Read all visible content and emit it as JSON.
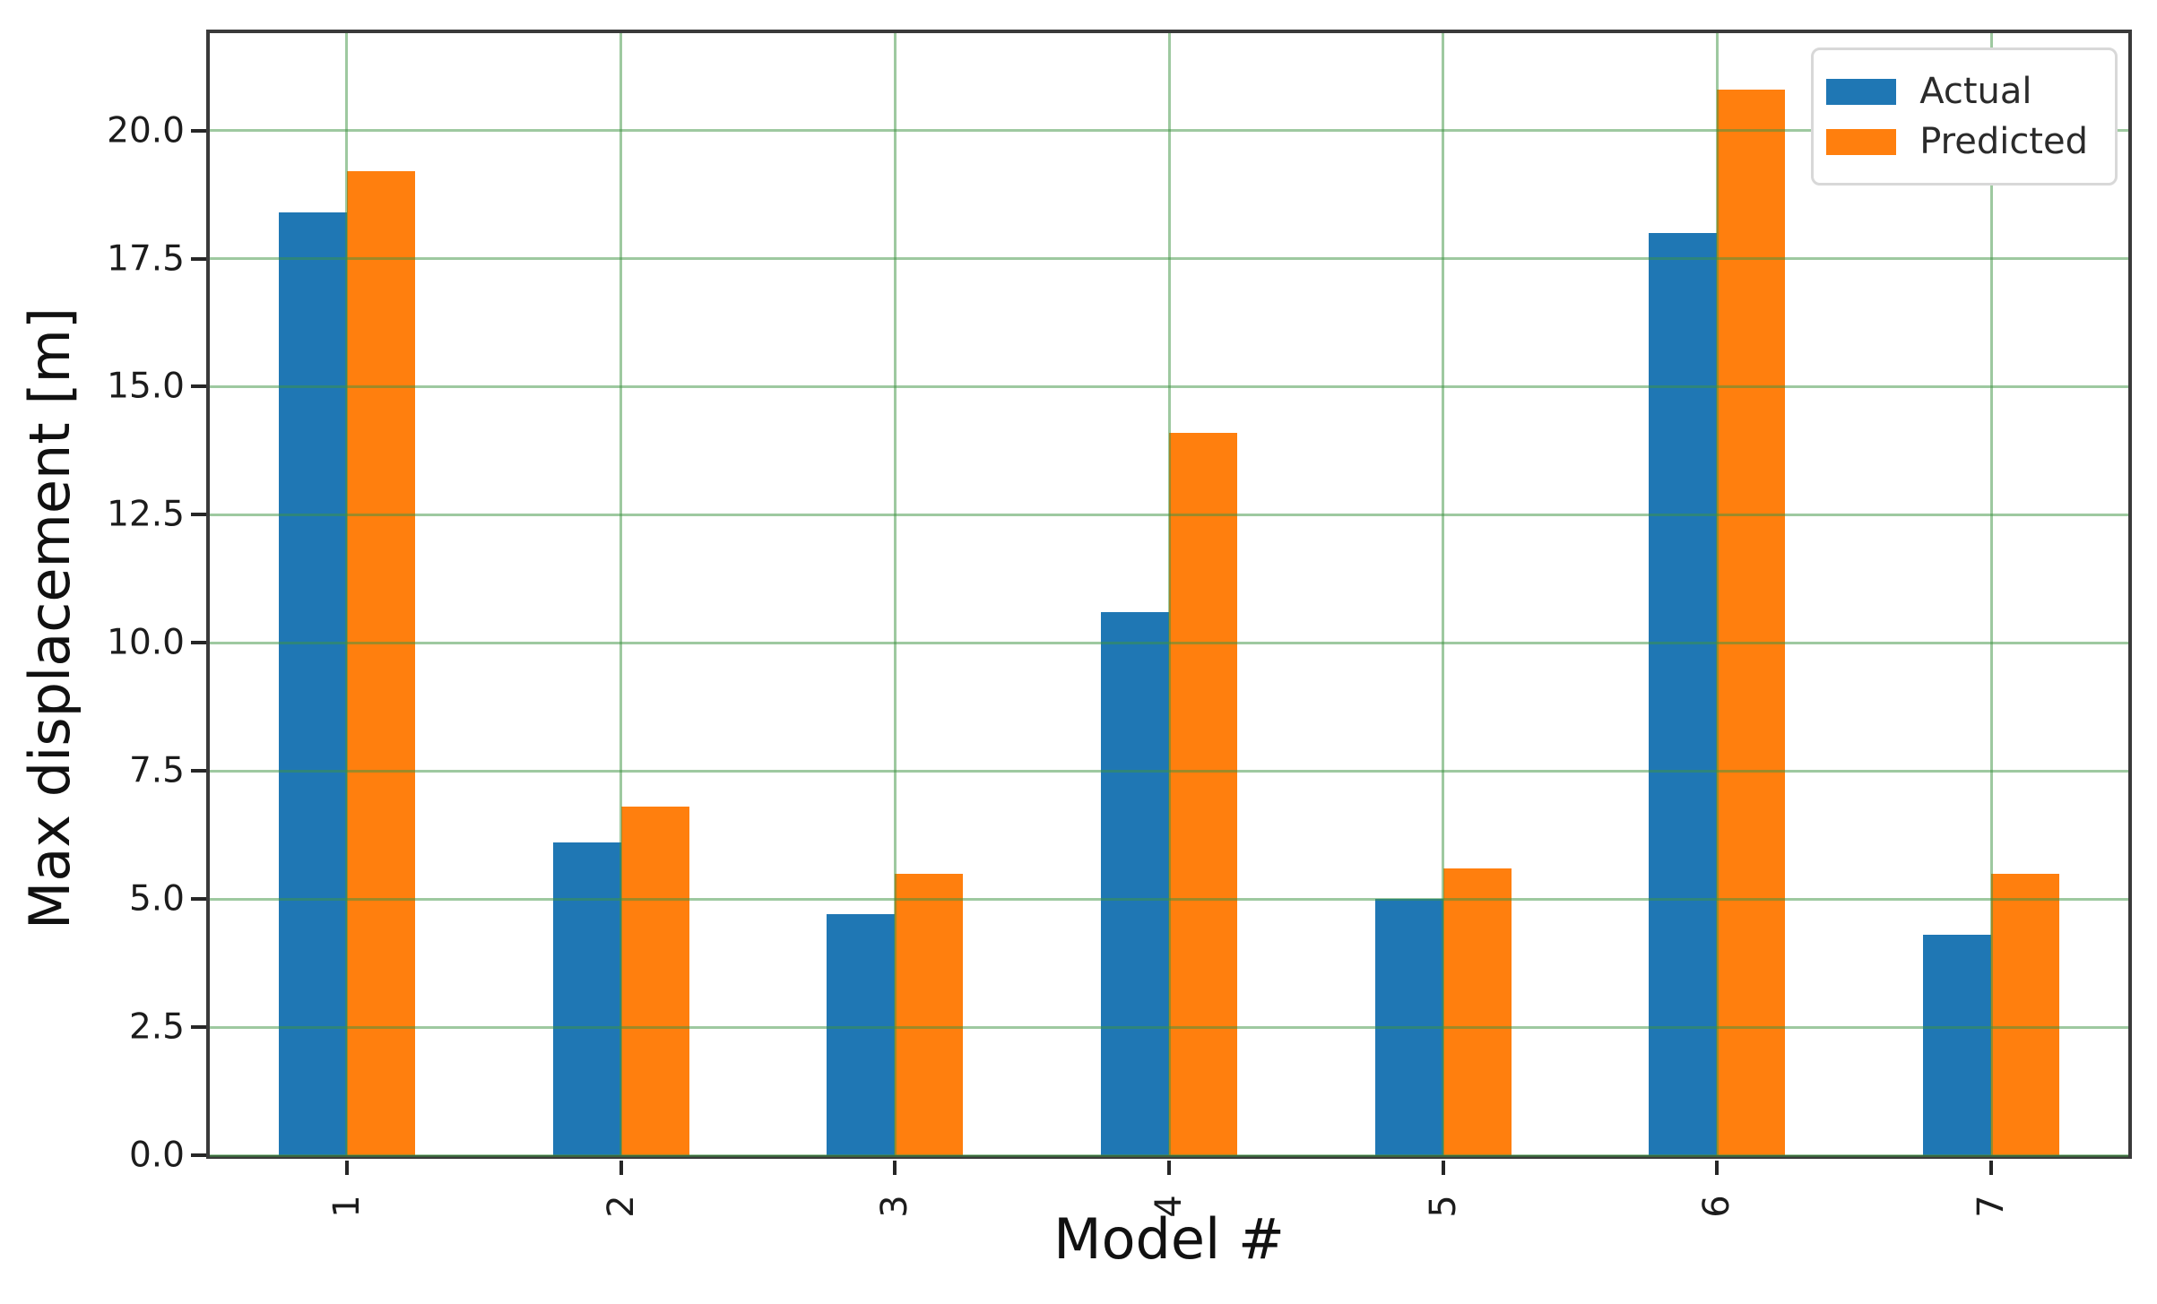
{
  "chart_data": {
    "type": "bar",
    "title": "",
    "xlabel": "Model #",
    "ylabel": "Max displacement [m]",
    "categories": [
      "1",
      "2",
      "3",
      "4",
      "5",
      "6",
      "7"
    ],
    "series": [
      {
        "name": "Actual",
        "color": "#1f77b4",
        "values": [
          18.4,
          6.1,
          4.7,
          10.6,
          5.0,
          18.0,
          4.3
        ]
      },
      {
        "name": "Predicted",
        "color": "#ff7f0e",
        "values": [
          19.2,
          6.8,
          5.5,
          14.1,
          5.6,
          20.8,
          5.5
        ]
      }
    ],
    "y_ticks": [
      0.0,
      2.5,
      5.0,
      7.5,
      10.0,
      12.5,
      15.0,
      17.5,
      20.0
    ],
    "y_tick_labels": [
      "0.0",
      "2.5",
      "5.0",
      "7.5",
      "10.0",
      "12.5",
      "15.0",
      "17.5",
      "20.0"
    ],
    "ylim": [
      0,
      21.9
    ],
    "grid": true,
    "legend_position": "upper right",
    "colors": {
      "grid": "#3d9442",
      "spine": "#3a3a3a",
      "tick": "#262626",
      "background": "#ffffff"
    }
  }
}
